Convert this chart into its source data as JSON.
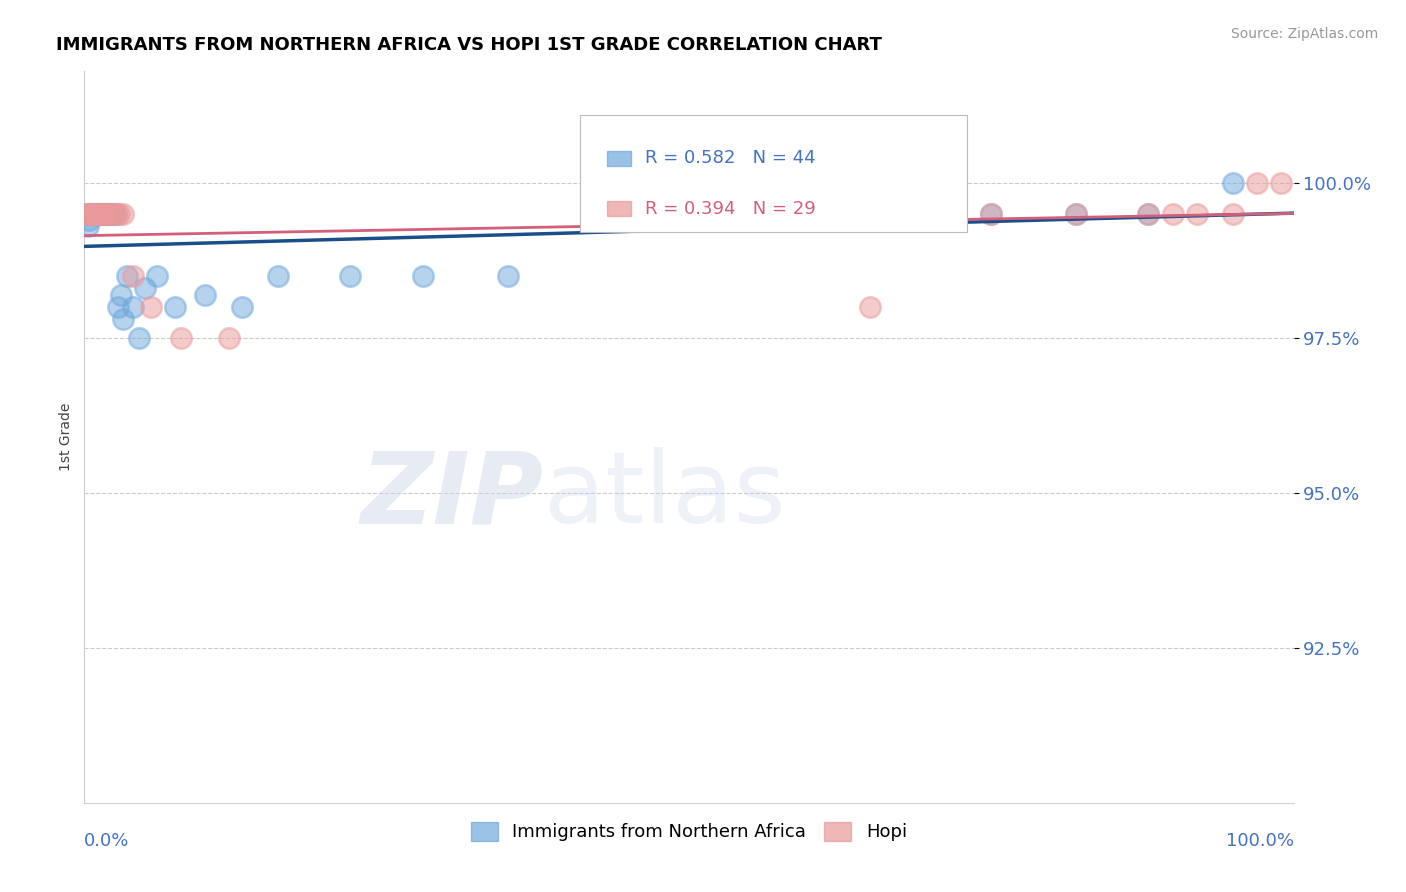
{
  "title": "IMMIGRANTS FROM NORTHERN AFRICA VS HOPI 1ST GRADE CORRELATION CHART",
  "source_text": "Source: ZipAtlas.com",
  "ylabel": "1st Grade",
  "legend_blue_label": "Immigrants from Northern Africa",
  "legend_pink_label": "Hopi",
  "R_blue": 0.582,
  "N_blue": 44,
  "R_pink": 0.394,
  "N_pink": 29,
  "xlim": [
    0.0,
    100.0
  ],
  "ylim": [
    90.0,
    101.8
  ],
  "yticks": [
    92.5,
    95.0,
    97.5,
    100.0
  ],
  "ytick_labels": [
    "92.5%",
    "95.0%",
    "97.5%",
    "100.0%"
  ],
  "blue_color": "#6fa8dc",
  "pink_color": "#ea9999",
  "blue_line_color": "#1a4f8a",
  "pink_line_color": "#d45f7a",
  "axis_color": "#4472c4",
  "blue_scatter_x": [
    0.2,
    0.3,
    0.4,
    0.5,
    0.6,
    0.7,
    0.8,
    0.9,
    1.0,
    1.1,
    1.2,
    1.3,
    1.4,
    1.5,
    1.6,
    1.7,
    1.8,
    1.9,
    2.0,
    2.2,
    2.4,
    2.6,
    2.8,
    3.0,
    3.2,
    3.5,
    4.0,
    4.5,
    5.0,
    6.0,
    7.5,
    10.0,
    13.0,
    16.0,
    22.0,
    28.0,
    35.0,
    45.0,
    55.0,
    65.0,
    75.0,
    82.0,
    88.0,
    95.0
  ],
  "blue_scatter_y": [
    99.5,
    99.3,
    99.4,
    99.5,
    99.5,
    99.5,
    99.5,
    99.5,
    99.5,
    99.5,
    99.5,
    99.5,
    99.5,
    99.5,
    99.5,
    99.5,
    99.5,
    99.5,
    99.5,
    99.5,
    99.5,
    99.5,
    98.0,
    98.2,
    97.8,
    98.5,
    98.0,
    97.5,
    98.3,
    98.5,
    98.0,
    98.2,
    98.0,
    98.5,
    98.5,
    98.5,
    98.5,
    99.5,
    99.5,
    99.5,
    99.5,
    99.5,
    99.5,
    100.0
  ],
  "pink_scatter_x": [
    0.2,
    0.3,
    0.5,
    0.7,
    0.9,
    1.0,
    1.2,
    1.4,
    1.6,
    1.8,
    2.0,
    2.3,
    2.6,
    2.9,
    3.2,
    4.0,
    5.5,
    8.0,
    12.0,
    45.0,
    65.0,
    75.0,
    82.0,
    88.0,
    90.0,
    92.0,
    95.0,
    97.0,
    99.0
  ],
  "pink_scatter_y": [
    99.5,
    99.5,
    99.5,
    99.5,
    99.5,
    99.5,
    99.5,
    99.5,
    99.5,
    99.5,
    99.5,
    99.5,
    99.5,
    99.5,
    99.5,
    98.5,
    98.0,
    97.5,
    97.5,
    99.5,
    98.0,
    99.5,
    99.5,
    99.5,
    99.5,
    99.5,
    99.5,
    100.0,
    100.0
  ]
}
